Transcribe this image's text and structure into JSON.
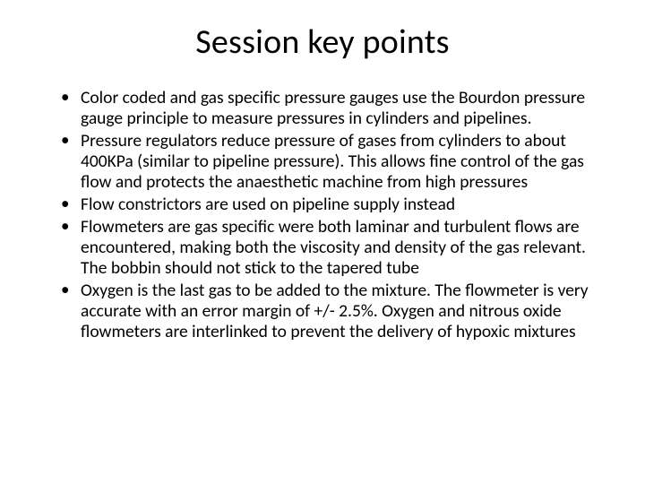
{
  "slide": {
    "title": "Session key points",
    "bullets": [
      "Color coded and gas specific pressure gauges use the Bourdon pressure gauge principle to measure pressures in cylinders and pipelines.",
      "Pressure regulators reduce pressure of gases from cylinders to about 400KPa (similar to pipeline pressure). This allows fine control of the gas flow and protects the anaesthetic machine from high pressures",
      "Flow constrictors are used on pipeline supply instead",
      "Flowmeters are gas specific were both laminar and turbulent flows are encountered, making both the viscosity and density of the gas relevant. The bobbin should not stick to the tapered tube",
      "Oxygen is the last gas to be added to the mixture. The flowmeter is very accurate with an error margin of +/- 2.5%. Oxygen and nitrous oxide flowmeters are interlinked to prevent the delivery of hypoxic mixtures"
    ]
  }
}
